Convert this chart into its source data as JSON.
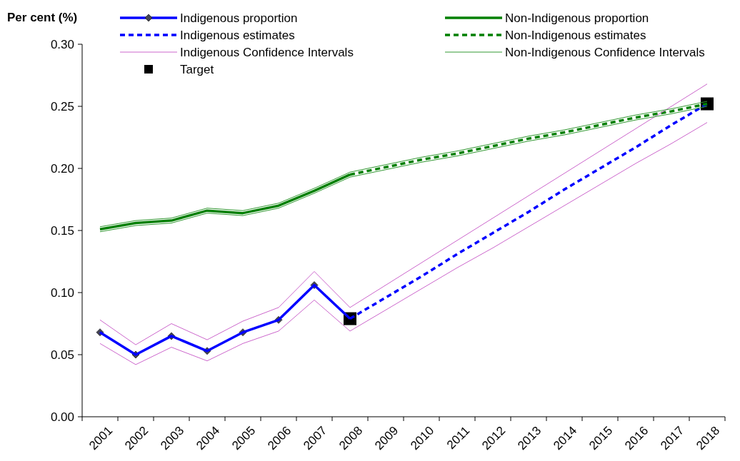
{
  "chart_data": {
    "type": "line",
    "ylabel": "Per cent (%)",
    "categories": [
      "2001",
      "2002",
      "2003",
      "2004",
      "2005",
      "2006",
      "2007",
      "2008",
      "2009",
      "2010",
      "2011",
      "2012",
      "2013",
      "2014",
      "2015",
      "2016",
      "2017",
      "2018"
    ],
    "ylim": [
      0,
      0.3
    ],
    "yticks": [
      {
        "value": 0,
        "label": "0.00"
      },
      {
        "value": 0.05,
        "label": "0.05"
      },
      {
        "value": 0.1,
        "label": "0.10"
      },
      {
        "value": 0.15,
        "label": "0.15"
      },
      {
        "value": 0.2,
        "label": "0.20"
      },
      {
        "value": 0.25,
        "label": "0.25"
      },
      {
        "value": 0.3,
        "label": "0.30"
      }
    ],
    "grid": false,
    "legend": "top",
    "series": [
      {
        "name": "Indigenous proportion",
        "color": "#0000ff",
        "marker": "diamond",
        "values": [
          0.068,
          0.05,
          0.065,
          0.053,
          0.068,
          0.078,
          0.106,
          0.079,
          null,
          null,
          null,
          null,
          null,
          null,
          null,
          null,
          null,
          null
        ]
      },
      {
        "name": "Non-Indigenous proportion",
        "color": "#008000",
        "values": [
          0.151,
          0.156,
          0.158,
          0.166,
          0.164,
          0.17,
          0.182,
          0.195,
          null,
          null,
          null,
          null,
          null,
          null,
          null,
          null,
          null,
          null
        ]
      },
      {
        "name": "Indigenous estimates",
        "color": "#0000ff",
        "line_style": "dashed",
        "values": [
          null,
          null,
          null,
          null,
          null,
          null,
          null,
          0.079,
          0.096,
          0.113,
          0.131,
          0.148,
          0.165,
          0.183,
          0.2,
          0.217,
          0.235,
          0.252
        ]
      },
      {
        "name": "Non-Indigenous estimates",
        "color": "#008000",
        "line_style": "dashed",
        "values": [
          null,
          null,
          null,
          null,
          null,
          null,
          null,
          0.195,
          0.201,
          0.207,
          0.212,
          0.218,
          0.224,
          0.229,
          0.235,
          0.241,
          0.246,
          0.252
        ]
      },
      {
        "name": "Indigenous Confidence Intervals",
        "color": "#cc66cc",
        "values": [
          0.078,
          0.058,
          0.075,
          0.062,
          0.077,
          0.088,
          0.117,
          0.088,
          0.106,
          0.124,
          0.142,
          0.16,
          0.178,
          0.196,
          0.214,
          0.232,
          0.25,
          0.268
        ]
      },
      {
        "color": "#cc66cc",
        "values": [
          0.059,
          0.042,
          0.056,
          0.045,
          0.059,
          0.069,
          0.094,
          0.069,
          0.086,
          0.103,
          0.12,
          0.136,
          0.153,
          0.17,
          0.187,
          0.204,
          0.22,
          0.237
        ]
      },
      {
        "name": "Non-Indigenous Confidence Intervals",
        "color": "#339933",
        "values": [
          0.153,
          0.158,
          0.16,
          0.168,
          0.166,
          0.172,
          0.184,
          0.197,
          0.203,
          0.209,
          0.214,
          0.22,
          0.226,
          0.231,
          0.237,
          0.243,
          0.248,
          0.254
        ]
      },
      {
        "color": "#339933",
        "values": [
          0.149,
          0.154,
          0.156,
          0.164,
          0.162,
          0.168,
          0.18,
          0.193,
          0.199,
          0.205,
          0.21,
          0.216,
          0.222,
          0.227,
          0.233,
          0.239,
          0.244,
          0.25
        ]
      },
      {
        "name": "Target",
        "type": "scatter",
        "color": "#000000",
        "marker": "square",
        "values": [
          null,
          null,
          null,
          null,
          null,
          null,
          null,
          0.079,
          null,
          null,
          null,
          null,
          null,
          null,
          null,
          null,
          null,
          0.252
        ]
      }
    ]
  }
}
